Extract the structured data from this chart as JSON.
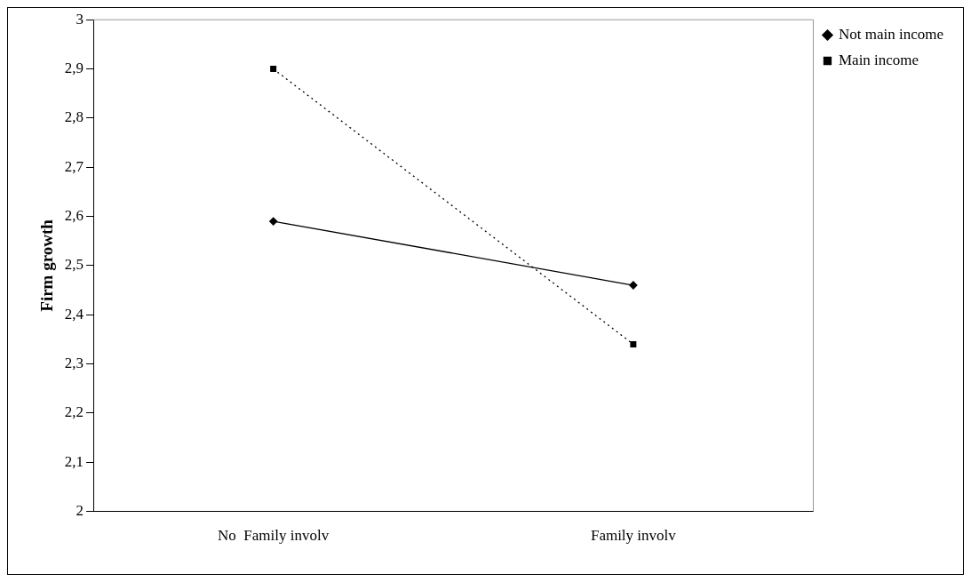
{
  "chart_data": {
    "type": "line",
    "ylabel": "Firm growth",
    "categories": [
      "No  Family involv",
      "Family involv"
    ],
    "series": [
      {
        "name": "Not main income",
        "color": "#000000",
        "values": [
          2.59,
          2.46
        ],
        "marker": "diamond",
        "line_style": "solid"
      },
      {
        "name": "Main income",
        "color": "#000000",
        "values": [
          2.9,
          2.34
        ],
        "marker": "square",
        "line_style": "dotted"
      }
    ],
    "ylim": [
      2,
      3
    ],
    "yticks": [
      2,
      {
        "value": 2.1,
        "label": "2,1"
      },
      {
        "value": 2.2,
        "label": "2,2"
      },
      {
        "value": 2.3,
        "label": "2,3"
      },
      {
        "value": 2.4,
        "label": "2,4"
      },
      {
        "value": 2.5,
        "label": "2,5"
      },
      {
        "value": 2.6,
        "label": "2,6"
      },
      {
        "value": 2.7,
        "label": "2,7"
      },
      {
        "value": 2.8,
        "label": "2,8"
      },
      {
        "value": 2.9,
        "label": "2,9"
      },
      3
    ],
    "grid": false,
    "legend": "top right"
  }
}
